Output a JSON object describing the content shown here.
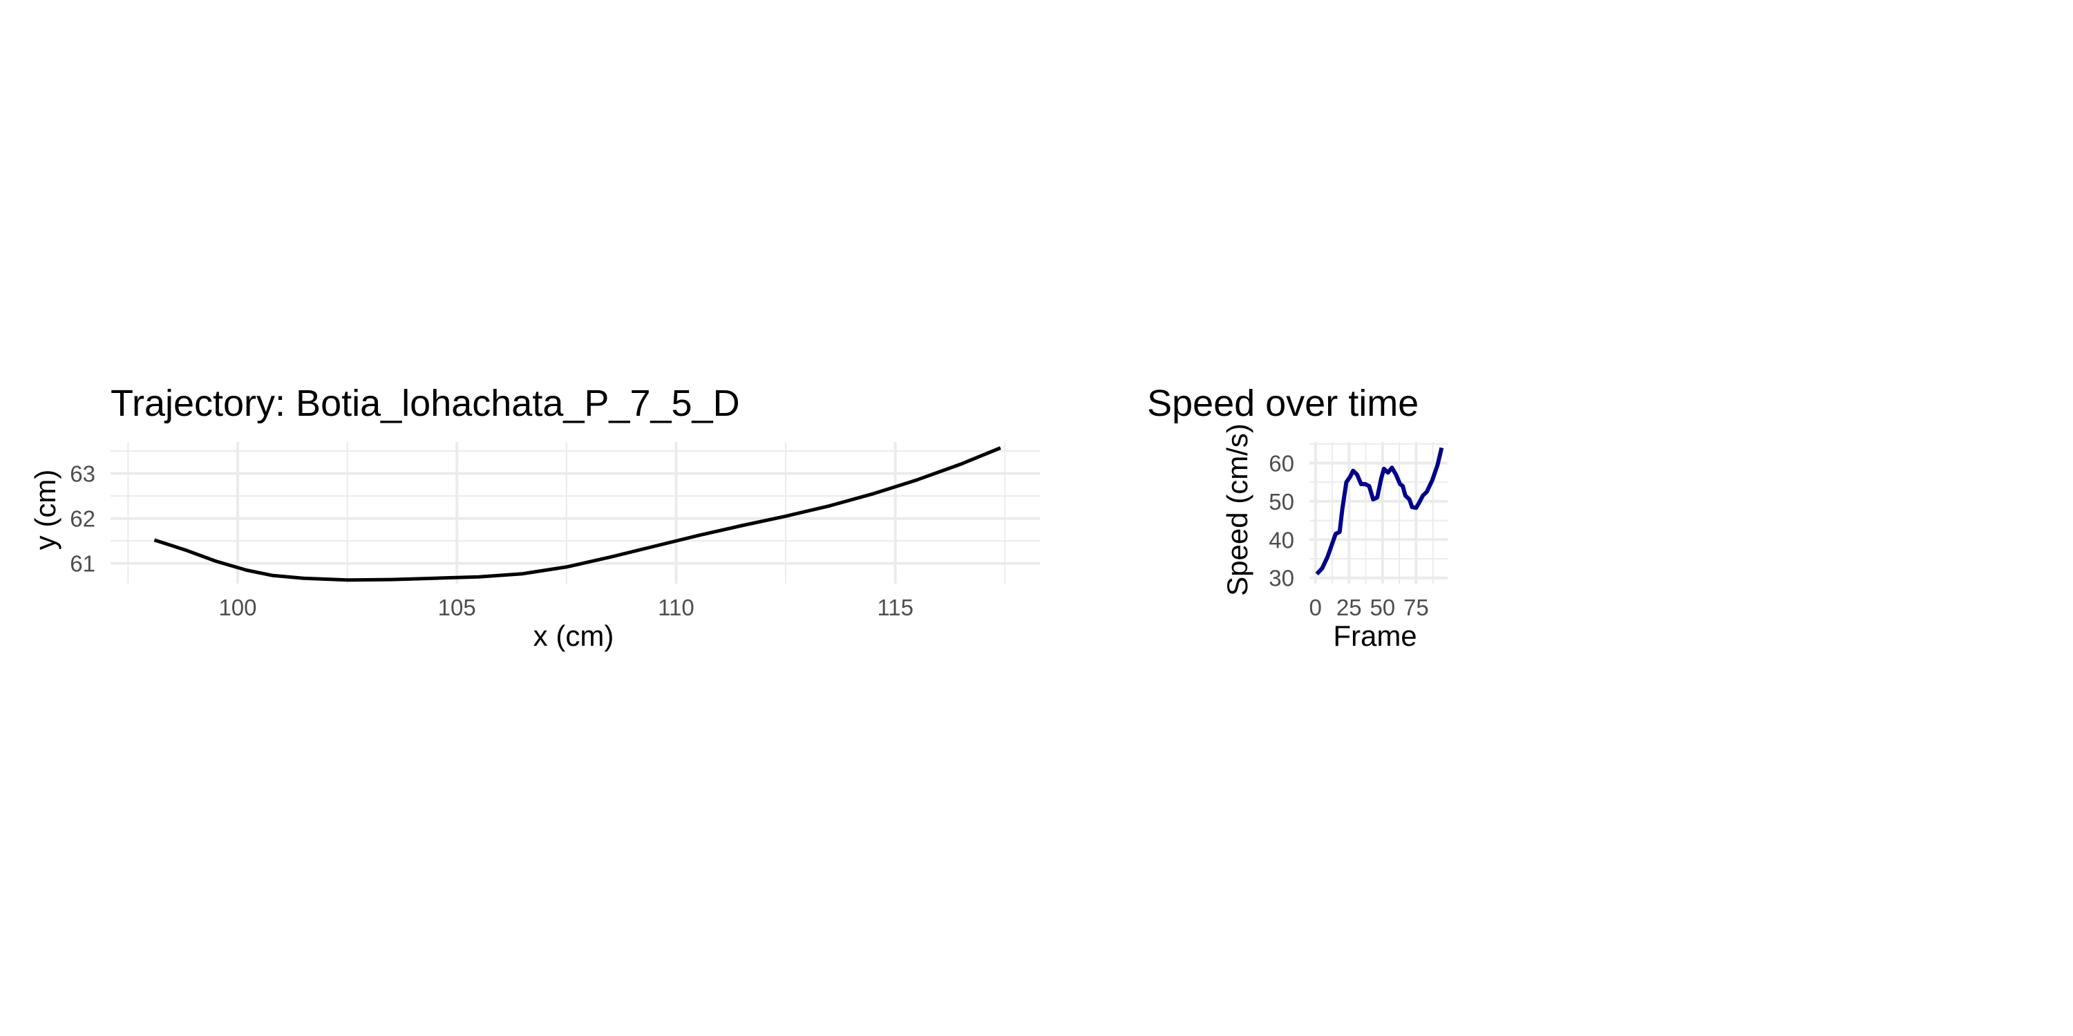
{
  "chart_data": [
    {
      "type": "line",
      "title": "Trajectory: Botia_lohachata_P_7_5_D",
      "xlabel": "x (cm)",
      "ylabel": "y (cm)",
      "xlim": [
        97.1,
        118.3
      ],
      "ylim": [
        60.55,
        63.7
      ],
      "xticks": [
        100,
        105,
        110,
        115
      ],
      "xtick_labels": [
        "100",
        "105",
        "110",
        "115"
      ],
      "yticks": [
        61,
        62,
        63
      ],
      "ytick_labels": [
        "61",
        "62",
        "63"
      ],
      "grid": true,
      "legend": "none",
      "color": "#000000",
      "series": [
        {
          "x": [
            98.1,
            98.8,
            99.5,
            100.2,
            100.8,
            101.5,
            102.5,
            103.5,
            104.5,
            105.5,
            106.5,
            107.5,
            108.5,
            109.5,
            110.5,
            111.5,
            112.5,
            113.5,
            114.5,
            115.5,
            116.5,
            117.4
          ],
          "y": [
            61.52,
            61.3,
            61.05,
            60.85,
            60.73,
            60.67,
            60.63,
            60.64,
            60.67,
            60.7,
            60.77,
            60.92,
            61.14,
            61.38,
            61.62,
            61.84,
            62.05,
            62.28,
            62.55,
            62.86,
            63.21,
            63.57
          ]
        }
      ]
    },
    {
      "type": "line",
      "title": "Speed over time",
      "xlabel": "Frame",
      "ylabel": "Speed (cm/s)",
      "xlim": [
        -4.5,
        98.5
      ],
      "ylim": [
        28.5,
        65.5
      ],
      "xticks": [
        0,
        25,
        50,
        75
      ],
      "xtick_labels": [
        "0",
        "25",
        "50",
        "75"
      ],
      "yticks": [
        30,
        40,
        50,
        60
      ],
      "ytick_labels": [
        "30",
        "40",
        "50",
        "60"
      ],
      "grid": true,
      "legend": "none",
      "color": "#00008B",
      "series": [
        {
          "x": [
            1,
            5,
            9,
            13,
            15,
            18,
            20,
            23,
            26,
            28,
            31,
            34,
            37,
            40,
            43,
            46,
            49,
            51,
            54,
            57,
            60,
            63,
            65,
            67,
            70,
            72,
            75,
            77,
            80,
            83,
            87,
            91,
            94
          ],
          "y": [
            31,
            32.5,
            35.5,
            39.5,
            41.5,
            42,
            48,
            55,
            56.5,
            58,
            57,
            54.5,
            54.5,
            54,
            50.5,
            51,
            56,
            58.5,
            57.5,
            58.8,
            57,
            54.5,
            54,
            51.5,
            50.5,
            48.5,
            48.3,
            49.5,
            51.5,
            52.5,
            55.5,
            59.5,
            64
          ]
        }
      ]
    }
  ]
}
